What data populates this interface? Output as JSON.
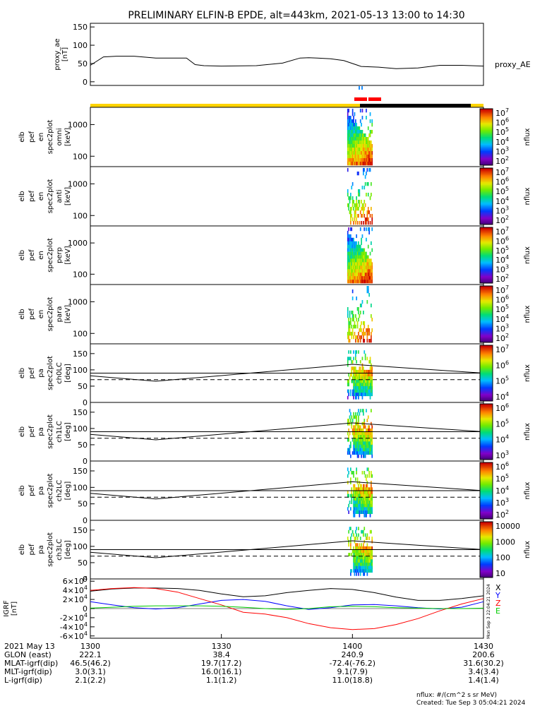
{
  "title": "PRELIMINARY ELFIN-B EPDE, alt=443km, 2021-05-13 13:00 to 14:30",
  "colors": {
    "axis": "#000000",
    "sector_bar_day": "#ffd400",
    "sector_bar_black": "#000000",
    "science_zone": "#ff0000",
    "fgm_mark": "#1e90ff",
    "igrf_x": "#000000",
    "igrf_y": "#0000ff",
    "igrf_z": "#ff0000",
    "igrf_e": "#00cc00"
  },
  "chart_data": [
    {
      "type": "line",
      "panel": "proxy_ae",
      "ylabel": [
        "proxy_ae",
        "[nT]"
      ],
      "legend": "proxy_AE",
      "ylim": [
        -10,
        160
      ],
      "yticks": [
        "0",
        "50",
        "100",
        "150"
      ],
      "x": [
        0,
        3,
        6,
        10,
        15,
        22,
        24,
        26,
        30,
        38,
        44,
        48,
        50,
        52,
        55,
        58,
        62,
        66,
        70,
        75,
        80,
        85,
        90
      ],
      "values": [
        45,
        68,
        70,
        70,
        65,
        65,
        47,
        44,
        43,
        44,
        51,
        65,
        66,
        65,
        63,
        58,
        42,
        40,
        36,
        38,
        45,
        45,
        43
      ]
    },
    {
      "type": "heatmap",
      "panel": "omni",
      "ylabel": [
        "elb",
        "pef",
        "en",
        "spec2plot",
        "omni",
        "[keV]"
      ],
      "yticks": [
        "100",
        "1000"
      ],
      "colorbar_label": "nflux",
      "colorbar_ticks": [
        "10^2",
        "10^3",
        "10^4",
        "10^5",
        "10^6",
        "10^7"
      ]
    },
    {
      "type": "heatmap",
      "panel": "anti",
      "ylabel": [
        "elb",
        "pef",
        "en",
        "spec2plot",
        "anti",
        "[keV]"
      ],
      "yticks": [
        "100",
        "1000"
      ],
      "colorbar_label": "nflux",
      "colorbar_ticks": [
        "10^2",
        "10^3",
        "10^4",
        "10^5",
        "10^6",
        "10^7"
      ]
    },
    {
      "type": "heatmap",
      "panel": "perp",
      "ylabel": [
        "elb",
        "pef",
        "en",
        "spec2plot",
        "perp",
        "[keV]"
      ],
      "yticks": [
        "100",
        "1000"
      ],
      "colorbar_label": "nflux",
      "colorbar_ticks": [
        "10^2",
        "10^3",
        "10^4",
        "10^5",
        "10^6",
        "10^7"
      ]
    },
    {
      "type": "heatmap",
      "panel": "para",
      "ylabel": [
        "elb",
        "pef",
        "en",
        "spec2plot",
        "para",
        "[keV]"
      ],
      "yticks": [
        "100",
        "1000"
      ],
      "colorbar_label": "nflux",
      "colorbar_ticks": [
        "10^2",
        "10^3",
        "10^4",
        "10^5",
        "10^6",
        "10^7"
      ]
    },
    {
      "type": "heatmap",
      "panel": "ch0LC",
      "ylabel": [
        "elb",
        "pef",
        "pa",
        "spec2plot",
        "ch0LC",
        "[deg]"
      ],
      "yticks": [
        "0",
        "50",
        "100",
        "150"
      ],
      "colorbar_label": "nflux",
      "colorbar_ticks": [
        "10^4",
        "10^5",
        "10^6",
        "10^7"
      ]
    },
    {
      "type": "heatmap",
      "panel": "ch1LC",
      "ylabel": [
        "elb",
        "pef",
        "pa",
        "spec2plot",
        "ch1LC",
        "[deg]"
      ],
      "yticks": [
        "0",
        "50",
        "100",
        "150"
      ],
      "colorbar_label": "nflux",
      "colorbar_ticks": [
        "10^3",
        "10^4",
        "10^5",
        "10^6"
      ]
    },
    {
      "type": "heatmap",
      "panel": "ch2LC",
      "ylabel": [
        "elb",
        "pef",
        "pa",
        "spec2plot",
        "ch2LC",
        "[deg]"
      ],
      "yticks": [
        "0",
        "50",
        "100",
        "150"
      ],
      "colorbar_label": "nflux",
      "colorbar_ticks": [
        "10^2",
        "10^3",
        "10^4",
        "10^5",
        "10^6"
      ]
    },
    {
      "type": "heatmap",
      "panel": "ch3LC",
      "ylabel": [
        "elb",
        "pef",
        "pa",
        "spec2plot",
        "ch3LC",
        "[deg]"
      ],
      "yticks": [
        "0",
        "50",
        "100",
        "150"
      ],
      "colorbar_label": "nflux",
      "colorbar_ticks": [
        "10",
        "100",
        "1000",
        "10000"
      ]
    },
    {
      "type": "line",
      "panel": "igrf",
      "ylabel": [
        "IGRF",
        "[nT]"
      ],
      "ylim": [
        -65000,
        65000
      ],
      "yticks": [
        "-6×10^4",
        "-4×10^4",
        "-2×10^4",
        "0",
        "2×10^4",
        "4×10^4",
        "6×10^4"
      ],
      "legend_letters": [
        "X",
        "Y",
        "Z",
        "E"
      ],
      "x": [
        0,
        5,
        10,
        15,
        20,
        25,
        30,
        35,
        40,
        45,
        50,
        55,
        60,
        65,
        70,
        75,
        80,
        85,
        90
      ],
      "series": [
        {
          "values": [
            38000,
            43000,
            45000,
            45000,
            44000,
            40000,
            32000,
            26000,
            28000,
            35000,
            40000,
            44000,
            42000,
            35000,
            25000,
            18000,
            18000,
            22000,
            28000
          ]
        },
        {
          "values": [
            15000,
            8000,
            2000,
            -1000,
            2000,
            10000,
            18000,
            20000,
            16000,
            6000,
            -2000,
            2000,
            8000,
            9000,
            6000,
            2000,
            -1000,
            3000,
            15000
          ]
        },
        {
          "values": [
            40000,
            44000,
            46000,
            44000,
            36000,
            22000,
            8000,
            -8000,
            -12000,
            -20000,
            -33000,
            -42000,
            -46000,
            -44000,
            -35000,
            -22000,
            -5000,
            10000,
            22000
          ]
        },
        {
          "values": [
            1000,
            3000,
            5000,
            6000,
            6000,
            6000,
            5000,
            3000,
            0,
            -2000,
            0,
            4000,
            5000,
            4000,
            2000,
            1000,
            0,
            0,
            1000
          ]
        }
      ]
    }
  ],
  "xaxis": {
    "tick_minutes": [
      0,
      30,
      60,
      90
    ],
    "rows": [
      {
        "label": "2021 May 13",
        "values": [
          "1300",
          "1330",
          "1400",
          "1430"
        ]
      },
      {
        "label": "GLON (east)",
        "values": [
          "222.1",
          "38.4",
          "240.9",
          "200.6"
        ]
      },
      {
        "label": "MLAT-igrf(dip)",
        "values": [
          "46.5(46.2)",
          "19.7(17.2)",
          "-72.4(-76.2)",
          "31.6(30.2)"
        ]
      },
      {
        "label": "MLT-igrf(dip)",
        "values": [
          "3.0(3.1)",
          "16.0(16.1)",
          "9.1(7.9)",
          "3.4(3.4)"
        ]
      },
      {
        "label": "L-igrf(dip)",
        "values": [
          "2.1(2.2)",
          "1.1(1.2)",
          "11.0(18.8)",
          "1.4(1.4)"
        ]
      }
    ]
  },
  "footer": {
    "units": "nflux: #/(cm^2 s sr MeV)",
    "created": "Created: Tue Sep  3 05:04:21 2024",
    "side_stamp": "Mon Sep  3 22:04:21 2024"
  }
}
